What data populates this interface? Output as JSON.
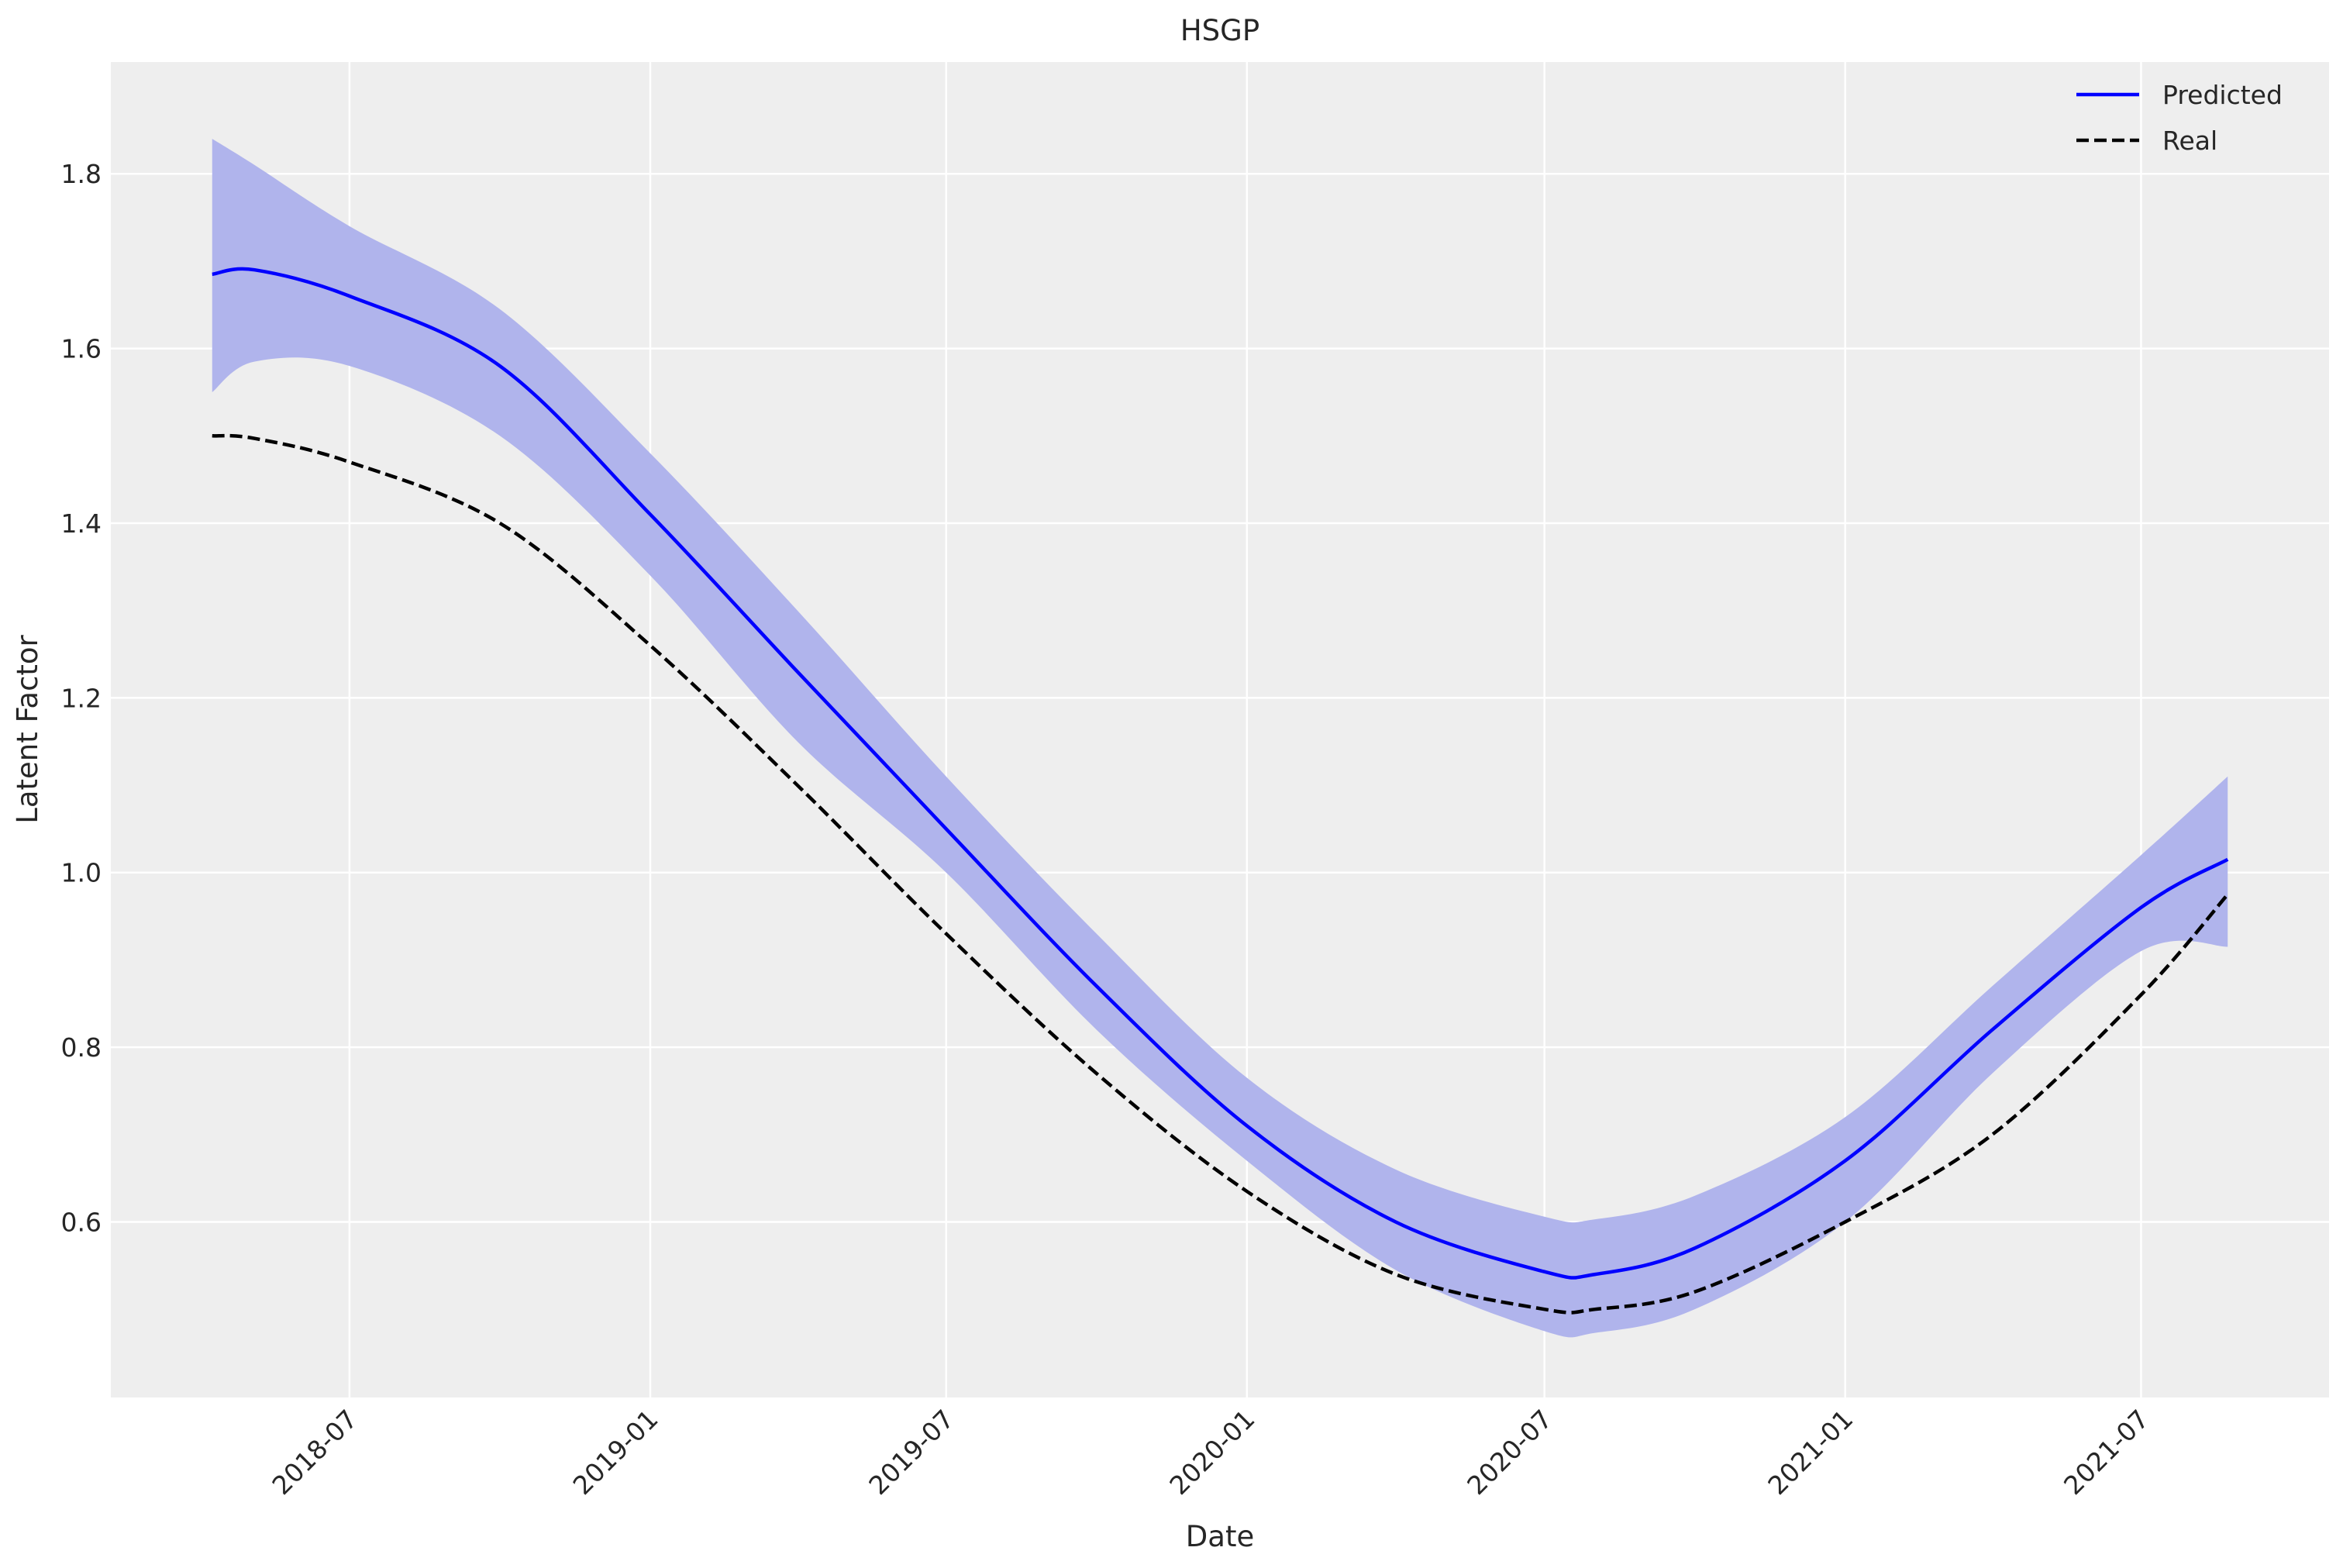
{
  "chart_data": {
    "type": "line",
    "title": "HSGP",
    "xlabel": "Date",
    "ylabel": "Latent Factor",
    "xlim": [
      "2018-02-05",
      "2021-10-24"
    ],
    "ylim": [
      0.399,
      1.928
    ],
    "grid": true,
    "legend_placement": "top-right",
    "x_ticks": [
      "2018-07",
      "2019-01",
      "2019-07",
      "2020-01",
      "2020-07",
      "2021-01",
      "2021-07"
    ],
    "x_tick_dates": [
      "2018-07-01",
      "2019-01-01",
      "2019-07-01",
      "2020-01-01",
      "2020-07-01",
      "2021-01-01",
      "2021-07-01"
    ],
    "y_ticks": [
      0.6,
      0.8,
      1.0,
      1.2,
      1.4,
      1.6,
      1.8
    ],
    "y_tick_labels": [
      "0.6",
      "0.8",
      "1.0",
      "1.2",
      "1.4",
      "1.6",
      "1.8"
    ],
    "x": [
      "2018-04-08",
      "2018-05-04",
      "2018-07-01",
      "2018-10-01",
      "2019-01-01",
      "2019-04-01",
      "2019-07-01",
      "2019-10-01",
      "2020-01-01",
      "2020-04-01",
      "2020-07-01",
      "2020-08-01",
      "2020-10-01",
      "2021-01-01",
      "2021-04-01",
      "2021-07-01",
      "2021-08-23"
    ],
    "series": [
      {
        "name": "Predicted",
        "color": "#0000ff",
        "style": "solid",
        "values": [
          1.685,
          1.69,
          1.66,
          1.58,
          1.41,
          1.23,
          1.05,
          0.87,
          0.71,
          0.6,
          0.543,
          0.54,
          0.57,
          0.67,
          0.82,
          0.96,
          1.015
        ]
      },
      {
        "name": "Real",
        "color": "#000000",
        "style": "dashed",
        "values": [
          1.5,
          1.497,
          1.47,
          1.4,
          1.26,
          1.1,
          0.93,
          0.77,
          0.635,
          0.54,
          0.5,
          0.5,
          0.52,
          0.6,
          0.7,
          0.86,
          0.975
        ]
      }
    ],
    "band": {
      "color": "#b0b4ec",
      "upper": [
        1.84,
        1.81,
        1.74,
        1.645,
        1.48,
        1.3,
        1.11,
        0.93,
        0.765,
        0.66,
        0.606,
        0.603,
        0.63,
        0.72,
        0.87,
        1.02,
        1.11
      ],
      "lower": [
        1.55,
        1.585,
        1.58,
        1.5,
        1.34,
        1.15,
        1.0,
        0.82,
        0.67,
        0.545,
        0.475,
        0.473,
        0.5,
        0.6,
        0.77,
        0.91,
        0.915
      ]
    },
    "colors": {
      "background": "#eeeeee",
      "grid": "#ffffff"
    }
  }
}
